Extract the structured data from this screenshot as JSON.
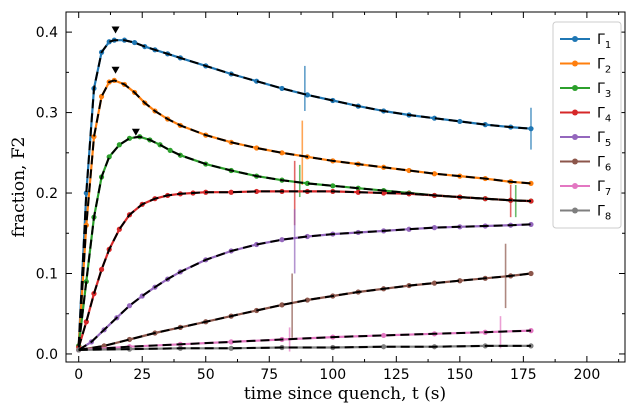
{
  "chart_data": {
    "type": "scatter",
    "xlabel": "time since quench, t (s)",
    "ylabel": "fraction, F2",
    "xlim": [
      -5,
      215
    ],
    "ylim": [
      -0.01,
      0.425
    ],
    "xticks": [
      0,
      25,
      50,
      75,
      100,
      125,
      150,
      175,
      200
    ],
    "yticks": [
      0.0,
      0.1,
      0.2,
      0.3,
      0.4
    ],
    "ytick_labels": [
      "0.0",
      "0.1",
      "0.2",
      "0.3",
      "0.4"
    ],
    "legend": "top-right",
    "grid": false,
    "markers": [
      {
        "x": 14.5,
        "y": 0.402
      },
      {
        "x": 14.5,
        "y": 0.352
      },
      {
        "x": 22.5,
        "y": 0.275
      }
    ],
    "series": [
      {
        "name": "Γ1",
        "label_base": "Γ",
        "label_sub": "1",
        "color": "#1f77b4",
        "x": [
          0,
          3,
          6,
          9,
          12,
          14,
          18,
          22,
          26,
          30,
          35,
          40,
          50,
          60,
          70,
          80,
          90,
          100,
          110,
          120,
          130,
          140,
          150,
          160,
          170,
          178
        ],
        "y": [
          0.01,
          0.2,
          0.33,
          0.375,
          0.388,
          0.39,
          0.39,
          0.387,
          0.382,
          0.378,
          0.373,
          0.368,
          0.358,
          0.348,
          0.339,
          0.33,
          0.322,
          0.315,
          0.308,
          0.302,
          0.297,
          0.293,
          0.289,
          0.285,
          0.282,
          0.28
        ],
        "errorbars": [
          {
            "x": 89,
            "y": 0.33,
            "err": 0.028
          },
          {
            "x": 178,
            "y": 0.28,
            "err": 0.026
          }
        ]
      },
      {
        "name": "Γ2",
        "label_base": "Γ",
        "label_sub": "2",
        "color": "#ff7f0e",
        "x": [
          0,
          3,
          6,
          9,
          12,
          14,
          18,
          22,
          26,
          30,
          35,
          40,
          50,
          60,
          70,
          80,
          90,
          100,
          110,
          120,
          130,
          140,
          150,
          160,
          170,
          178
        ],
        "y": [
          0.01,
          0.16,
          0.27,
          0.32,
          0.338,
          0.34,
          0.335,
          0.325,
          0.312,
          0.302,
          0.292,
          0.284,
          0.272,
          0.263,
          0.256,
          0.25,
          0.245,
          0.24,
          0.236,
          0.232,
          0.228,
          0.224,
          0.221,
          0.218,
          0.214,
          0.212
        ],
        "errorbars": [
          {
            "x": 88,
            "y": 0.25,
            "err": 0.04
          }
        ]
      },
      {
        "name": "Γ3",
        "label_base": "Γ",
        "label_sub": "3",
        "color": "#2ca02c",
        "x": [
          0,
          3,
          6,
          9,
          12,
          16,
          20,
          24,
          28,
          32,
          36,
          40,
          50,
          60,
          70,
          80,
          90,
          100,
          110,
          120,
          130,
          140,
          150,
          160,
          170,
          178
        ],
        "y": [
          0.01,
          0.09,
          0.17,
          0.22,
          0.245,
          0.26,
          0.268,
          0.27,
          0.266,
          0.26,
          0.253,
          0.247,
          0.236,
          0.228,
          0.221,
          0.216,
          0.212,
          0.209,
          0.206,
          0.203,
          0.2,
          0.197,
          0.195,
          0.193,
          0.191,
          0.19
        ],
        "errorbars": [
          {
            "x": 87,
            "y": 0.215,
            "err": 0.02
          },
          {
            "x": 172,
            "y": 0.19,
            "err": 0.02
          }
        ]
      },
      {
        "name": "Γ4",
        "label_base": "Γ",
        "label_sub": "4",
        "color": "#d62728",
        "x": [
          0,
          3,
          6,
          9,
          12,
          16,
          20,
          25,
          30,
          35,
          40,
          45,
          50,
          60,
          70,
          80,
          90,
          100,
          110,
          120,
          130,
          140,
          150,
          160,
          170,
          178
        ],
        "y": [
          0.008,
          0.04,
          0.075,
          0.105,
          0.13,
          0.155,
          0.173,
          0.186,
          0.193,
          0.197,
          0.199,
          0.2,
          0.201,
          0.201,
          0.202,
          0.202,
          0.202,
          0.202,
          0.201,
          0.2,
          0.199,
          0.197,
          0.195,
          0.193,
          0.191,
          0.19
        ],
        "errorbars": [
          {
            "x": 85,
            "y": 0.2,
            "err": 0.04
          },
          {
            "x": 170,
            "y": 0.19,
            "err": 0.02
          }
        ]
      },
      {
        "name": "Γ5",
        "label_base": "Γ",
        "label_sub": "5",
        "color": "#9467bd",
        "x": [
          0,
          5,
          10,
          15,
          20,
          25,
          30,
          35,
          40,
          50,
          60,
          70,
          80,
          90,
          100,
          110,
          120,
          130,
          140,
          150,
          160,
          170,
          178
        ],
        "y": [
          0.005,
          0.015,
          0.03,
          0.045,
          0.06,
          0.072,
          0.083,
          0.093,
          0.102,
          0.117,
          0.128,
          0.136,
          0.142,
          0.146,
          0.149,
          0.151,
          0.153,
          0.155,
          0.157,
          0.158,
          0.159,
          0.16,
          0.161
        ],
        "errorbars": [
          {
            "x": 85,
            "y": 0.14,
            "err": 0.04
          }
        ]
      },
      {
        "name": "Γ6",
        "label_base": "Γ",
        "label_sub": "6",
        "color": "#8c564b",
        "x": [
          0,
          10,
          20,
          30,
          40,
          50,
          60,
          70,
          80,
          90,
          100,
          110,
          120,
          130,
          140,
          150,
          160,
          170,
          178
        ],
        "y": [
          0.005,
          0.01,
          0.018,
          0.026,
          0.033,
          0.04,
          0.047,
          0.054,
          0.061,
          0.067,
          0.072,
          0.077,
          0.081,
          0.085,
          0.088,
          0.091,
          0.094,
          0.097,
          0.1
        ],
        "errorbars": [
          {
            "x": 84,
            "y": 0.06,
            "err": 0.04
          },
          {
            "x": 168,
            "y": 0.097,
            "err": 0.04
          }
        ]
      },
      {
        "name": "Γ7",
        "label_base": "Γ",
        "label_sub": "7",
        "color": "#e377c2",
        "x": [
          0,
          20,
          40,
          60,
          80,
          100,
          120,
          140,
          160,
          178
        ],
        "y": [
          0.005,
          0.009,
          0.012,
          0.015,
          0.018,
          0.021,
          0.023,
          0.025,
          0.027,
          0.029
        ],
        "errorbars": [
          {
            "x": 83,
            "y": 0.018,
            "err": 0.015
          },
          {
            "x": 166,
            "y": 0.027,
            "err": 0.02
          }
        ]
      },
      {
        "name": "Γ8",
        "label_base": "Γ",
        "label_sub": "8",
        "color": "#7f7f7f",
        "x": [
          0,
          20,
          40,
          60,
          80,
          100,
          120,
          140,
          160,
          178
        ],
        "y": [
          0.005,
          0.006,
          0.007,
          0.007,
          0.008,
          0.008,
          0.009,
          0.009,
          0.01,
          0.01
        ],
        "errorbars": []
      }
    ]
  }
}
